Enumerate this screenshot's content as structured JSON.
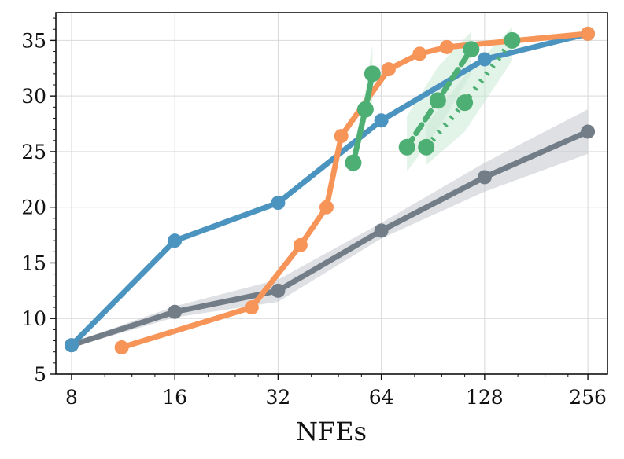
{
  "chart_data": {
    "type": "line",
    "title": "",
    "xlabel": "NFEs",
    "ylabel": "",
    "xscale": "log2",
    "xlim": [
      7.2,
      292
    ],
    "ylim": [
      5,
      37.5
    ],
    "xticks": [
      8,
      16,
      32,
      64,
      128,
      256
    ],
    "xtick_labels": [
      "8",
      "16",
      "32",
      "64",
      "128",
      "256"
    ],
    "yticks": [
      5,
      10,
      15,
      20,
      25,
      30,
      35
    ],
    "ytick_labels": [
      "5",
      "10",
      "15",
      "20",
      "25",
      "30",
      "35"
    ],
    "grid": true,
    "legend": "none",
    "series": [
      {
        "name": "gray",
        "color": "#737d87",
        "band_color": "#c2c7cd",
        "line_style": "solid",
        "x": [
          8,
          16,
          32,
          64,
          128,
          256
        ],
        "y": [
          7.6,
          10.6,
          12.5,
          17.9,
          22.7,
          26.8
        ],
        "band_lower": [
          7.4,
          10.1,
          11.5,
          17.2,
          21.4,
          24.8
        ],
        "band_upper": [
          7.8,
          11.1,
          13.5,
          18.6,
          24.0,
          28.8
        ]
      },
      {
        "name": "blue",
        "color": "#4b94c0",
        "line_style": "solid",
        "x": [
          8,
          16,
          32,
          64,
          128,
          256
        ],
        "y": [
          7.6,
          17.0,
          20.4,
          27.8,
          33.3,
          35.6
        ]
      },
      {
        "name": "orange",
        "color": "#f79458",
        "line_style": "solid",
        "x": [
          11.2,
          26.8,
          37.2,
          44.3,
          48.9,
          67.2,
          82.8,
          99.3,
          256
        ],
        "y": [
          7.4,
          11.0,
          16.6,
          20.0,
          26.4,
          32.4,
          33.8,
          34.4,
          35.6
        ]
      },
      {
        "name": "green solid",
        "color": "#4daf73",
        "band_color": "#c6e8d2",
        "line_style": "solid",
        "x": [
          53,
          57.5,
          60.3
        ],
        "y": [
          24.0,
          28.8,
          32.0
        ],
        "band_lower": [
          22.8,
          27.5,
          29.5
        ],
        "band_upper": [
          25.2,
          30.5,
          34.6
        ]
      },
      {
        "name": "green dashed",
        "color": "#4daf73",
        "band_color": "#c6e8d2",
        "line_style": "dashed",
        "x": [
          76,
          93.5,
          117
        ],
        "y": [
          25.4,
          29.6,
          34.2
        ],
        "band_lower": [
          23.2,
          27.0,
          32.0
        ],
        "band_upper": [
          28.2,
          32.6,
          35.8
        ]
      },
      {
        "name": "green dotted",
        "color": "#4daf73",
        "band_color": "#c6e8d2",
        "line_style": "dotted",
        "x": [
          86.5,
          112,
          154
        ],
        "y": [
          25.4,
          29.4,
          35.0
        ],
        "band_lower": [
          23.8,
          26.8,
          33.2
        ],
        "band_upper": [
          27.4,
          31.8,
          36.2
        ]
      }
    ]
  }
}
